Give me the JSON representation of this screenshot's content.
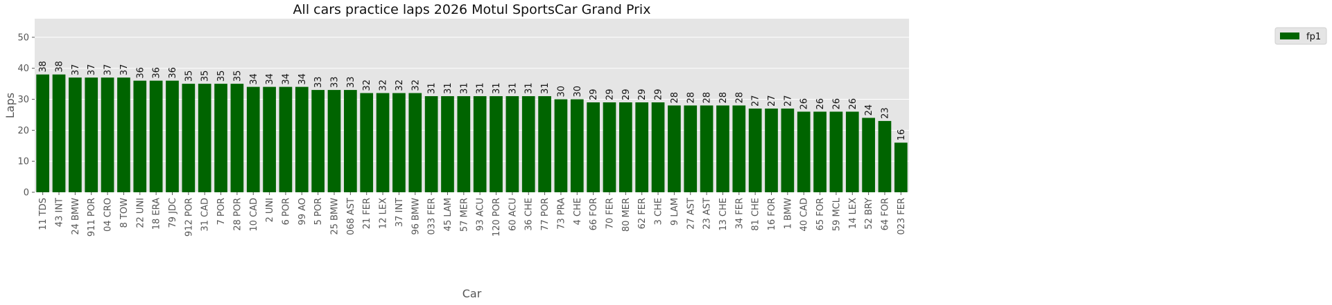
{
  "chart_data": {
    "type": "bar",
    "title": "All cars practice laps 2026 Motul SportsCar Grand Prix",
    "xlabel": "Car",
    "ylabel": "Laps",
    "ylim": [
      0,
      56
    ],
    "yticks": [
      0,
      10,
      20,
      30,
      40,
      50
    ],
    "grid": true,
    "legend_position": "top-right outside",
    "categories": [
      "11 TDS",
      "43 INT",
      "24 BMW",
      "911 POR",
      "04 CRO",
      "8 TOW",
      "22 UNI",
      "18 ERA",
      "79 JDC",
      "912 POR",
      "31 CAD",
      "7 POR",
      "28 POR",
      "10 CAD",
      "2 UNI",
      "6 POR",
      "99 AO",
      "5 POR",
      "25 BMW",
      "068 AST",
      "21 FER",
      "12 LEX",
      "37 INT",
      "96 BMW",
      "033 FER",
      "45 LAM",
      "57 MER",
      "93 ACU",
      "120 POR",
      "60 ACU",
      "36 CHE",
      "77 POR",
      "73 PRA",
      "4 CHE",
      "66 FOR",
      "70 FER",
      "80 MER",
      "62 FER",
      "3 CHE",
      "9 LAM",
      "27 AST",
      "23 AST",
      "13 CHE",
      "34 FER",
      "81 CHE",
      "16 FOR",
      "1 BMW",
      "40 CAD",
      "65 FOR",
      "59 MCL",
      "14 LEX",
      "52 BRY",
      "64 FOR",
      "023 FER"
    ],
    "series": [
      {
        "name": "fp1",
        "color": "#006400",
        "values": [
          38,
          38,
          37,
          37,
          37,
          37,
          36,
          36,
          36,
          35,
          35,
          35,
          35,
          34,
          34,
          34,
          34,
          33,
          33,
          33,
          32,
          32,
          32,
          32,
          31,
          31,
          31,
          31,
          31,
          31,
          31,
          31,
          30,
          30,
          29,
          29,
          29,
          29,
          29,
          28,
          28,
          28,
          28,
          28,
          27,
          27,
          27,
          26,
          26,
          26,
          26,
          24,
          23,
          16
        ]
      }
    ]
  },
  "colors": {
    "plot_background": "#e5e5e5",
    "grid": "#ffffff"
  }
}
